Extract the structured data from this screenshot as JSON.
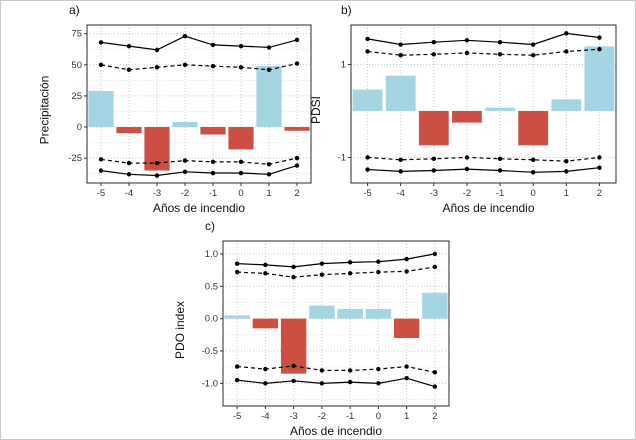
{
  "figure": {
    "background": "#ffffff"
  },
  "colors": {
    "positive_bar": "#a5d5e3",
    "negative_bar": "#cc4f44",
    "line": "#000000",
    "grid_major": "#c9c9c9",
    "grid_minor": "#e0e0e0",
    "panel_border": "#2b2b2b",
    "tick_text": "#333333"
  },
  "chart_data": [
    {
      "id": "a",
      "type": "bar",
      "panel_label": "a)",
      "ylabel": "Precipitación",
      "xlabel": "Años de incendio",
      "categories": [
        "-5",
        "-4",
        "-3",
        "-2",
        "-1",
        "0",
        "1",
        "2"
      ],
      "series": [
        {
          "name": "anomalia-barras",
          "type": "bar",
          "values": [
            29,
            -5,
            -35,
            4,
            -6,
            -18,
            49,
            -3
          ]
        },
        {
          "name": "limite-superior-solido",
          "type": "line",
          "style": "solid",
          "values": [
            68,
            65,
            62,
            73,
            66,
            65,
            64,
            70
          ]
        },
        {
          "name": "limite-superior-discontinuo",
          "type": "line",
          "style": "dashed",
          "values": [
            50,
            46,
            48,
            50,
            49,
            48,
            46,
            51
          ]
        },
        {
          "name": "limite-inferior-discontinuo",
          "type": "line",
          "style": "dashed",
          "values": [
            -26,
            -29,
            -29,
            -27,
            -28,
            -28,
            -30,
            -25
          ]
        },
        {
          "name": "limite-inferior-solido",
          "type": "line",
          "style": "solid",
          "values": [
            -35,
            -38,
            -39,
            -36,
            -37,
            -37,
            -38,
            -31
          ]
        }
      ],
      "ylim": [
        -45,
        82
      ],
      "yticks": [
        -25,
        0,
        25,
        50,
        75
      ],
      "ytick_labels": [
        "-25",
        "0",
        "25",
        "50",
        "75"
      ],
      "grid": true,
      "legend": "none"
    },
    {
      "id": "b",
      "type": "bar",
      "panel_label": "b)",
      "ylabel": "PDSI",
      "xlabel": "Años de incendio",
      "categories": [
        "-5",
        "-4",
        "-3",
        "-2",
        "-1",
        "0",
        "1",
        "2"
      ],
      "series": [
        {
          "name": "anomalia-barras",
          "type": "bar",
          "values": [
            0.46,
            0.76,
            -0.74,
            -0.25,
            0.07,
            -0.74,
            0.25,
            1.39
          ]
        },
        {
          "name": "limite-superior-solido",
          "type": "line",
          "style": "solid",
          "values": [
            1.55,
            1.43,
            1.48,
            1.52,
            1.48,
            1.43,
            1.67,
            1.58
          ]
        },
        {
          "name": "limite-superior-discontinuo",
          "type": "line",
          "style": "dashed",
          "values": [
            1.28,
            1.2,
            1.22,
            1.25,
            1.22,
            1.2,
            1.28,
            1.33
          ]
        },
        {
          "name": "limite-inferior-discontinuo",
          "type": "line",
          "style": "dashed",
          "values": [
            -1.0,
            -1.05,
            -1.03,
            -1.0,
            -1.03,
            -1.05,
            -1.08,
            -1.0
          ]
        },
        {
          "name": "limite-inferior-solido",
          "type": "line",
          "style": "solid",
          "values": [
            -1.26,
            -1.3,
            -1.28,
            -1.25,
            -1.28,
            -1.32,
            -1.3,
            -1.22
          ]
        }
      ],
      "ylim": [
        -1.55,
        1.85
      ],
      "yticks": [
        -1,
        1
      ],
      "ytick_labels": [
        "-1",
        "1"
      ],
      "grid": true,
      "legend": "none"
    },
    {
      "id": "c",
      "type": "bar",
      "panel_label": "c)",
      "ylabel": "PDO index",
      "xlabel": "Años de incendio",
      "categories": [
        "-5",
        "-4",
        "-3",
        "-2",
        "-1",
        "0",
        "1",
        "2"
      ],
      "series": [
        {
          "name": "anomalia-barras",
          "type": "bar",
          "values": [
            0.05,
            -0.15,
            -0.85,
            0.2,
            0.15,
            0.15,
            -0.3,
            0.4
          ]
        },
        {
          "name": "limite-superior-solido",
          "type": "line",
          "style": "solid",
          "values": [
            0.85,
            0.83,
            0.8,
            0.85,
            0.87,
            0.88,
            0.92,
            1.0
          ]
        },
        {
          "name": "limite-superior-discontinuo",
          "type": "line",
          "style": "dashed",
          "values": [
            0.72,
            0.7,
            0.64,
            0.68,
            0.7,
            0.72,
            0.73,
            0.8
          ]
        },
        {
          "name": "limite-inferior-discontinuo",
          "type": "line",
          "style": "dashed",
          "values": [
            -0.74,
            -0.78,
            -0.73,
            -0.8,
            -0.8,
            -0.78,
            -0.74,
            -0.83
          ]
        },
        {
          "name": "limite-inferior-solido",
          "type": "line",
          "style": "solid",
          "values": [
            -0.95,
            -1.0,
            -0.96,
            -1.0,
            -0.98,
            -1.0,
            -0.92,
            -1.05
          ]
        }
      ],
      "ylim": [
        -1.35,
        1.2
      ],
      "yticks": [
        -1,
        -0.5,
        0,
        0.5,
        1
      ],
      "ytick_labels": [
        "-1.0",
        "-0.5",
        "0.0",
        "0.5",
        "1.0"
      ],
      "grid": true,
      "legend": "none"
    }
  ]
}
